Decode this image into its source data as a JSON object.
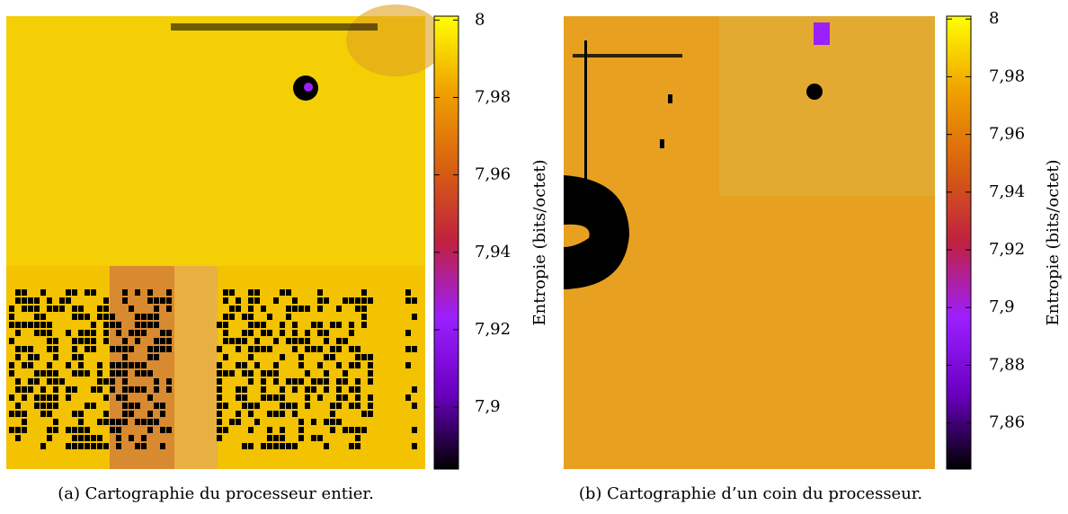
{
  "chart_data": [
    {
      "type": "heatmap",
      "caption": "(a) Cartographie du processeur entier.",
      "colorbar_label": "Entropie (bits/octet)",
      "zlim": [
        7.884,
        8.001
      ],
      "zticks": [
        8,
        {
          "value": 7.98,
          "label": "7,98"
        },
        {
          "value": 7.96,
          "label": "7,96"
        },
        {
          "value": 7.94,
          "label": "7,94"
        },
        {
          "value": 7.92,
          "label": "7,92"
        },
        {
          "value": 7.9,
          "label": "7,9"
        }
      ],
      "colormap": [
        "#000000",
        "#6a00c0",
        "#9b1fff",
        "#c02040",
        "#d86010",
        "#f0a000",
        "#ffff00"
      ]
    },
    {
      "type": "heatmap",
      "caption": "(b) Cartographie d’un coin du processeur.",
      "colorbar_label": "Entropie (bits/octet)",
      "zlim": [
        7.844,
        8.001
      ],
      "zticks": [
        8,
        {
          "value": 7.98,
          "label": "7,98"
        },
        {
          "value": 7.96,
          "label": "7,96"
        },
        {
          "value": 7.94,
          "label": "7,94"
        },
        {
          "value": 7.92,
          "label": "7,92"
        },
        {
          "value": 7.9,
          "label": "7,9"
        },
        {
          "value": 7.88,
          "label": "7,88"
        },
        {
          "value": 7.86,
          "label": "7,86"
        }
      ],
      "colormap": [
        "#000000",
        "#6a00c0",
        "#9b1fff",
        "#c02040",
        "#d86010",
        "#f0a000",
        "#ffff00"
      ]
    }
  ]
}
